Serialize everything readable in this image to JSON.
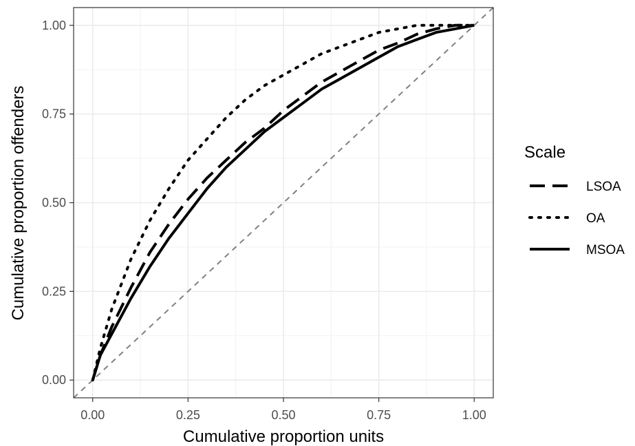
{
  "chart_data": {
    "type": "line",
    "xlabel": "Cumulative proportion units",
    "ylabel": "Cumulative proportion offenders",
    "xlim": [
      -0.05,
      1.05
    ],
    "ylim": [
      -0.05,
      1.05
    ],
    "x_ticks": [
      0.0,
      0.25,
      0.5,
      0.75,
      1.0
    ],
    "x_tick_labels": [
      "0.00",
      "0.25",
      "0.50",
      "0.75",
      "1.00"
    ],
    "y_ticks": [
      0.0,
      0.25,
      0.5,
      0.75,
      1.0
    ],
    "y_tick_labels": [
      "0.00",
      "0.25",
      "0.50",
      "0.75",
      "1.00"
    ],
    "grid": true,
    "legend": {
      "title": "Scale",
      "placement": "right",
      "entries": [
        {
          "label": "LSOA",
          "linetype": "dashed"
        },
        {
          "label": "OA",
          "linetype": "dotted"
        },
        {
          "label": "MSOA",
          "linetype": "solid"
        }
      ]
    },
    "reference_line": {
      "linetype": "dashed",
      "color": "#808080",
      "x": [
        -0.05,
        1.05
      ],
      "y": [
        -0.05,
        1.05
      ]
    },
    "series": [
      {
        "name": "LSOA",
        "linetype": "dashed",
        "color": "#000000",
        "x": [
          0,
          0.02,
          0.05,
          0.1,
          0.15,
          0.2,
          0.25,
          0.3,
          0.35,
          0.4,
          0.45,
          0.5,
          0.55,
          0.6,
          0.65,
          0.7,
          0.75,
          0.8,
          0.85,
          0.9,
          0.95,
          1.0
        ],
        "y": [
          0,
          0.07,
          0.15,
          0.26,
          0.36,
          0.44,
          0.51,
          0.57,
          0.62,
          0.67,
          0.71,
          0.76,
          0.8,
          0.84,
          0.87,
          0.9,
          0.93,
          0.95,
          0.975,
          0.99,
          1.0,
          1.0
        ]
      },
      {
        "name": "OA",
        "linetype": "dotted",
        "color": "#000000",
        "x": [
          0,
          0.02,
          0.05,
          0.1,
          0.15,
          0.2,
          0.25,
          0.3,
          0.35,
          0.4,
          0.45,
          0.5,
          0.55,
          0.6,
          0.65,
          0.7,
          0.75,
          0.8,
          0.85,
          0.9,
          0.95,
          1.0
        ],
        "y": [
          0,
          0.09,
          0.2,
          0.34,
          0.45,
          0.54,
          0.62,
          0.68,
          0.74,
          0.79,
          0.83,
          0.86,
          0.89,
          0.92,
          0.94,
          0.96,
          0.98,
          0.99,
          1.0,
          1.0,
          1.0,
          1.0
        ]
      },
      {
        "name": "MSOA",
        "linetype": "solid",
        "color": "#000000",
        "x": [
          0,
          0.02,
          0.05,
          0.1,
          0.15,
          0.2,
          0.25,
          0.3,
          0.35,
          0.4,
          0.45,
          0.5,
          0.55,
          0.6,
          0.65,
          0.7,
          0.75,
          0.8,
          0.85,
          0.9,
          0.95,
          1.0
        ],
        "y": [
          0,
          0.07,
          0.13,
          0.23,
          0.32,
          0.4,
          0.47,
          0.54,
          0.6,
          0.65,
          0.7,
          0.74,
          0.78,
          0.82,
          0.85,
          0.88,
          0.91,
          0.94,
          0.96,
          0.98,
          0.99,
          1.0
        ]
      }
    ]
  }
}
